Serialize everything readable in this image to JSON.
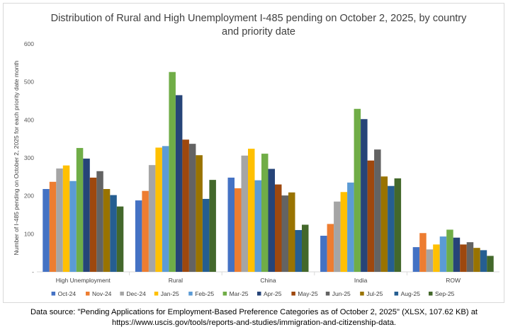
{
  "chart_data": {
    "type": "bar",
    "title": "Distribution of Rural and High Unemployment I-485 pending on October 2, 2025, by country and priority date",
    "xlabel": "",
    "ylabel": "Number of I-485 pending on October 2, 2025 for each priority date month",
    "ylim": [
      0,
      600
    ],
    "yticks": [
      "-",
      "100",
      "200",
      "300",
      "400",
      "500",
      "600"
    ],
    "grid": false,
    "legend_position": "bottom",
    "categories": [
      "High Unemployment",
      "Rural",
      "China",
      "India",
      "ROW"
    ],
    "series": [
      {
        "name": "Oct-24",
        "color": "#4472c4",
        "values": [
          218,
          188,
          248,
          95,
          65
        ]
      },
      {
        "name": "Nov-24",
        "color": "#ed7d31",
        "values": [
          237,
          213,
          220,
          126,
          102
        ]
      },
      {
        "name": "Dec-24",
        "color": "#a5a5a5",
        "values": [
          272,
          281,
          306,
          185,
          59
        ]
      },
      {
        "name": "Jan-25",
        "color": "#ffc000",
        "values": [
          280,
          327,
          324,
          210,
          72
        ]
      },
      {
        "name": "Feb-25",
        "color": "#5b9bd5",
        "values": [
          239,
          331,
          241,
          235,
          93
        ]
      },
      {
        "name": "Mar-25",
        "color": "#70ad47",
        "values": [
          326,
          526,
          311,
          429,
          111
        ]
      },
      {
        "name": "Apr-25",
        "color": "#264478",
        "values": [
          298,
          465,
          271,
          402,
          90
        ]
      },
      {
        "name": "May-25",
        "color": "#9e480e",
        "values": [
          248,
          348,
          230,
          293,
          72
        ]
      },
      {
        "name": "Jun-25",
        "color": "#636363",
        "values": [
          265,
          337,
          201,
          322,
          78
        ]
      },
      {
        "name": "Jul-25",
        "color": "#997300",
        "values": [
          218,
          307,
          209,
          251,
          63
        ]
      },
      {
        "name": "Aug-25",
        "color": "#255e91",
        "values": [
          202,
          192,
          110,
          226,
          57
        ]
      },
      {
        "name": "Sep-25",
        "color": "#43682b",
        "values": [
          172,
          242,
          124,
          246,
          42
        ]
      }
    ]
  },
  "source_note": "Data source: \"Pending Applications for Employment-Based Preference Categories as of October 2, 2025\" (XLSX, 107.62 KB) at https://www.uscis.gov/tools/reports-and-studies/immigration-and-citizenship-data."
}
